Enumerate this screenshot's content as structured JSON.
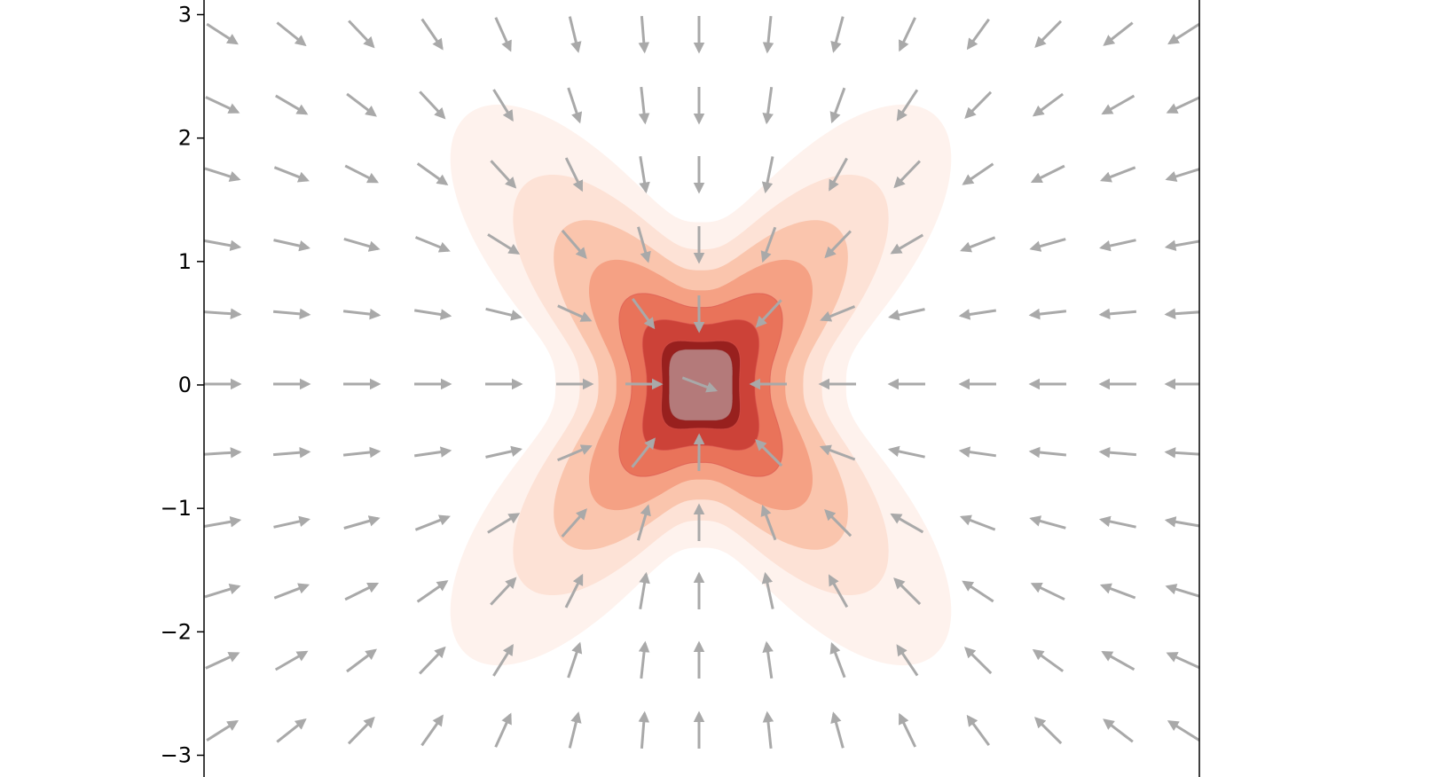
{
  "chart_data": {
    "type": "contour",
    "title": "",
    "xlabel": "",
    "ylabel": "",
    "xlim": [
      -2.8,
      2.8
    ],
    "ylim": [
      -3,
      3
    ],
    "x_tick_labels": [],
    "y_ticks": [
      {
        "value": 3,
        "label": "3"
      },
      {
        "value": 2,
        "label": "2"
      },
      {
        "value": 1,
        "label": "1"
      },
      {
        "value": 0,
        "label": "0"
      },
      {
        "value": -1,
        "label": "−1"
      },
      {
        "value": -2,
        "label": "−2"
      },
      {
        "value": -3,
        "label": "−3"
      }
    ],
    "grid": false,
    "legend": "none",
    "contour": {
      "field": "exp(-(r^2)/2) * (1 + 0.5*x^2*y^2 influence), cross-shaped, peak at (0, 0)",
      "levels": 7,
      "colormap": "Reds",
      "alpha": 0.5,
      "peak_value": 1.0,
      "center": [
        0,
        0
      ],
      "level_colors": [
        "#fdeee7",
        "#fcdccd",
        "#f9bfa6",
        "#f39a7c",
        "#e66b52",
        "#c73a32",
        "#8e1a1a"
      ]
    },
    "quiver": {
      "field": "vectors point toward the origin along -(x, y) with a cross-shaped pull",
      "color": "#a9a9a9",
      "x_positions": [
        -2.8,
        -2.24,
        -1.68,
        -1.12,
        -0.56,
        0,
        0.56,
        1.12,
        1.68,
        2.24,
        2.8
      ],
      "y_positions": [
        2.8,
        2.24,
        1.68,
        1.12,
        0.56,
        0,
        -0.56,
        -1.12,
        -1.68,
        -2.24,
        -2.8
      ],
      "arrows": [
        {
          "x": -2.8,
          "y": 2.8,
          "u": 0.28,
          "v": -0.04
        },
        {
          "x": -2.24,
          "y": 2.8,
          "u": 0.27,
          "v": -0.13
        },
        {
          "x": -1.68,
          "y": 2.8,
          "u": 0.22,
          "v": -0.22
        },
        {
          "x": -1.12,
          "y": 2.8,
          "u": 0.13,
          "v": -0.27
        },
        {
          "x": -0.56,
          "y": 2.8,
          "u": 0.05,
          "v": -0.3
        },
        {
          "x": 0,
          "y": 2.8,
          "u": 0,
          "v": -0.32
        },
        {
          "x": 0.56,
          "y": 2.8,
          "u": -0.05,
          "v": -0.3
        },
        {
          "x": 1.12,
          "y": 2.8,
          "u": -0.13,
          "v": -0.27
        },
        {
          "x": 1.68,
          "y": 2.8,
          "u": -0.22,
          "v": -0.22
        },
        {
          "x": 2.24,
          "y": 2.8,
          "u": -0.27,
          "v": -0.13
        },
        {
          "x": 2.8,
          "y": 2.8,
          "u": -0.28,
          "v": -0.04
        }
      ]
    }
  }
}
